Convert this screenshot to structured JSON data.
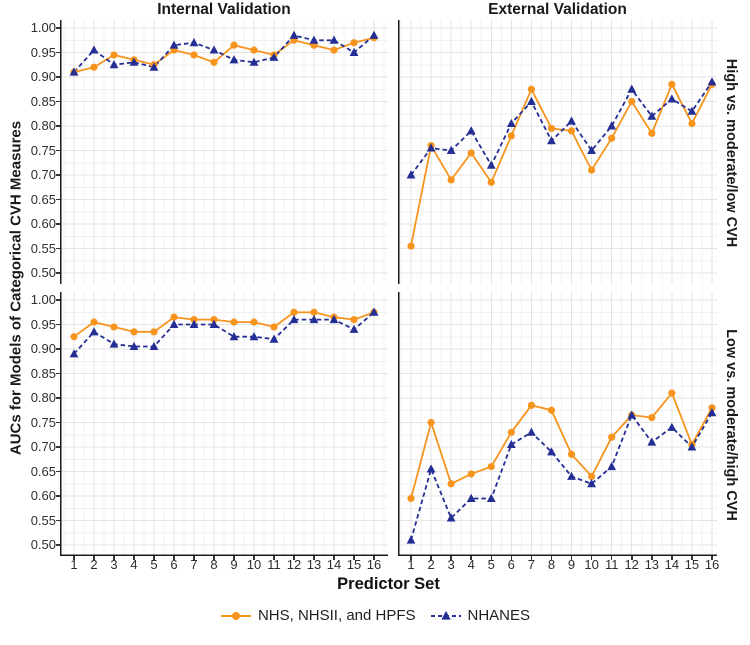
{
  "figure": {
    "col_titles": [
      "Internal Validation",
      "External Validation"
    ],
    "row_titles": [
      "High vs. moderate/low CVH",
      "Low vs. moderate/high CVH"
    ],
    "x_axis_title": "Predictor Set",
    "y_axis_title": "AUCs for Models of Categorical CVH Measures"
  },
  "legend": [
    "NHS, NHSII, and HPFS",
    "NHANES"
  ],
  "colors": {
    "nhs_orange": "#F7941E",
    "nhanes_navy": "#242E94",
    "grid_major": "#E3E3E3",
    "grid_minor": "#F1F1F1",
    "axis_line": "#1A1A1A",
    "tick_text": "#2E2E2E"
  },
  "chart_data": {
    "type": "line",
    "x": [
      1,
      2,
      3,
      4,
      5,
      6,
      7,
      8,
      9,
      10,
      11,
      12,
      13,
      14,
      15,
      16
    ],
    "x_label": "Predictor Set",
    "y_label": "AUCs for Models of Categorical CVH Measures",
    "ylim": [
      0.5,
      1.0
    ],
    "y_tick_step": 0.05,
    "y_ticks": [
      "1.00",
      "0.95",
      "0.90",
      "0.85",
      "0.80",
      "0.75",
      "0.70",
      "0.65",
      "0.60",
      "0.55",
      "0.50"
    ],
    "grid": "major and minor, light gray on white",
    "legend_position": "bottom",
    "facets": {
      "columns": [
        "Internal Validation",
        "External Validation"
      ],
      "rows": [
        "High vs. moderate/low CVH",
        "Low vs. moderate/high CVH"
      ]
    },
    "series_style": {
      "NHS, NHSII, and HPFS": {
        "color": "#F7941E",
        "line": "solid",
        "marker": "circle"
      },
      "NHANES": {
        "color": "#242E94",
        "line": "dashed",
        "marker": "triangle"
      }
    },
    "panels": [
      {
        "column": "Internal Validation",
        "row": "High vs. moderate/low CVH",
        "series": [
          {
            "name": "NHS, NHSII, and HPFS",
            "values": [
              0.91,
              0.92,
              0.945,
              0.935,
              0.925,
              0.955,
              0.945,
              0.93,
              0.965,
              0.955,
              0.945,
              0.975,
              0.965,
              0.955,
              0.97,
              0.98
            ]
          },
          {
            "name": "NHANES",
            "values": [
              0.91,
              0.955,
              0.925,
              0.93,
              0.92,
              0.965,
              0.97,
              0.955,
              0.935,
              0.93,
              0.94,
              0.985,
              0.975,
              0.975,
              0.95,
              0.985
            ]
          }
        ]
      },
      {
        "column": "External Validation",
        "row": "High vs. moderate/low CVH",
        "series": [
          {
            "name": "NHS, NHSII, and HPFS",
            "values": [
              0.555,
              0.76,
              0.69,
              0.745,
              0.685,
              0.78,
              0.875,
              0.795,
              0.79,
              0.71,
              0.775,
              0.85,
              0.785,
              0.885,
              0.805,
              0.885
            ]
          },
          {
            "name": "NHANES",
            "values": [
              0.7,
              0.755,
              0.75,
              0.79,
              0.72,
              0.805,
              0.85,
              0.77,
              0.81,
              0.75,
              0.8,
              0.875,
              0.82,
              0.855,
              0.83,
              0.89
            ]
          }
        ]
      },
      {
        "column": "Internal Validation",
        "row": "Low vs. moderate/high CVH",
        "series": [
          {
            "name": "NHS, NHSII, and HPFS",
            "values": [
              0.925,
              0.955,
              0.945,
              0.935,
              0.935,
              0.965,
              0.96,
              0.96,
              0.955,
              0.955,
              0.945,
              0.975,
              0.975,
              0.965,
              0.96,
              0.975
            ]
          },
          {
            "name": "NHANES",
            "values": [
              0.89,
              0.935,
              0.91,
              0.905,
              0.905,
              0.95,
              0.95,
              0.95,
              0.925,
              0.925,
              0.92,
              0.96,
              0.96,
              0.96,
              0.94,
              0.975
            ]
          }
        ]
      },
      {
        "column": "External Validation",
        "row": "Low vs. moderate/high CVH",
        "series": [
          {
            "name": "NHS, NHSII, and HPFS",
            "values": [
              0.595,
              0.75,
              0.625,
              0.645,
              0.66,
              0.73,
              0.785,
              0.775,
              0.685,
              0.64,
              0.72,
              0.765,
              0.76,
              0.81,
              0.705,
              0.78
            ]
          },
          {
            "name": "NHANES",
            "values": [
              0.51,
              0.655,
              0.555,
              0.595,
              0.595,
              0.705,
              0.73,
              0.69,
              0.64,
              0.625,
              0.66,
              0.765,
              0.71,
              0.74,
              0.7,
              0.77
            ]
          }
        ]
      }
    ]
  }
}
